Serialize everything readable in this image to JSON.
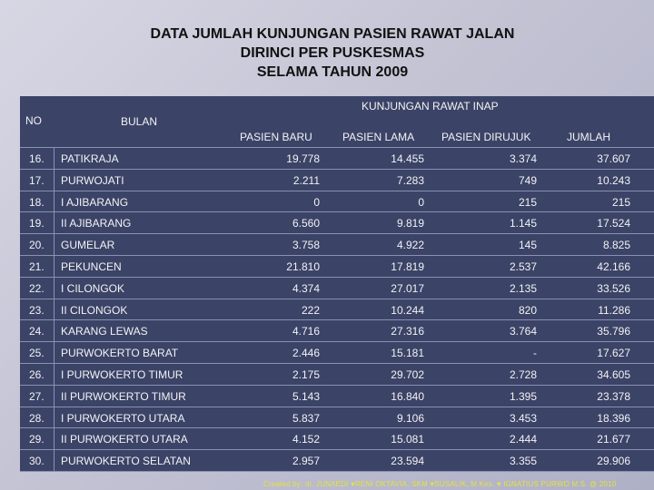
{
  "title": {
    "line1": "DATA JUMLAH KUNJUNGAN PASIEN RAWAT JALAN",
    "line2": "DIRINCI PER PUSKESMAS",
    "line3": "SELAMA TAHUN 2009"
  },
  "table": {
    "header_no": "NO",
    "header_bulan": "BULAN",
    "header_group": "KUNJUNGAN RAWAT INAP",
    "header_cols": [
      "PASIEN BARU",
      "PASIEN LAMA",
      "PASIEN DIRUJUK",
      "JUMLAH"
    ],
    "rows": [
      {
        "no": "16.",
        "name": "PATIKRAJA",
        "baru": "19.778",
        "lama": "14.455",
        "dirujuk": "3.374",
        "jumlah": "37.607"
      },
      {
        "no": "17.",
        "name": "PURWOJATI",
        "baru": "2.211",
        "lama": "7.283",
        "dirujuk": "749",
        "jumlah": "10.243"
      },
      {
        "no": "18.",
        "name": "I AJIBARANG",
        "baru": "0",
        "lama": "0",
        "dirujuk": "215",
        "jumlah": "215"
      },
      {
        "no": "19.",
        "name": "II AJIBARANG",
        "baru": "6.560",
        "lama": "9.819",
        "dirujuk": "1.145",
        "jumlah": "17.524"
      },
      {
        "no": "20.",
        "name": "GUMELAR",
        "baru": "3.758",
        "lama": "4.922",
        "dirujuk": "145",
        "jumlah": "8.825"
      },
      {
        "no": "21.",
        "name": "PEKUNCEN",
        "baru": "21.810",
        "lama": "17.819",
        "dirujuk": "2.537",
        "jumlah": "42.166"
      },
      {
        "no": "22.",
        "name": "I CILONGOK",
        "baru": "4.374",
        "lama": "27.017",
        "dirujuk": "2.135",
        "jumlah": "33.526"
      },
      {
        "no": "23.",
        "name": "II CILONGOK",
        "baru": "222",
        "lama": "10.244",
        "dirujuk": "820",
        "jumlah": "11.286"
      },
      {
        "no": "24.",
        "name": "KARANG LEWAS",
        "baru": "4.716",
        "lama": "27.316",
        "dirujuk": "3.764",
        "jumlah": "35.796"
      },
      {
        "no": "25.",
        "name": "PURWOKERTO BARAT",
        "baru": "2.446",
        "lama": "15.181",
        "dirujuk": "-",
        "jumlah": "17.627"
      },
      {
        "no": "26.",
        "name": "I PURWOKERTO TIMUR",
        "baru": "2.175",
        "lama": "29.702",
        "dirujuk": "2.728",
        "jumlah": "34.605"
      },
      {
        "no": "27.",
        "name": "II PURWOKERTO TIMUR",
        "baru": "5.143",
        "lama": "16.840",
        "dirujuk": "1.395",
        "jumlah": "23.378"
      },
      {
        "no": "28.",
        "name": "I PURWOKERTO UTARA",
        "baru": "5.837",
        "lama": "9.106",
        "dirujuk": "3.453",
        "jumlah": "18.396"
      },
      {
        "no": "29.",
        "name": "II PURWOKERTO UTARA",
        "baru": "4.152",
        "lama": "15.081",
        "dirujuk": "2.444",
        "jumlah": "21.677"
      },
      {
        "no": "30.",
        "name": "PURWOKERTO SELATAN",
        "baru": "2.957",
        "lama": "23.594",
        "dirujuk": "3.355",
        "jumlah": "29.906"
      }
    ]
  },
  "footer": "Created by: dr. JUNAEDI ♥RENI OKTAVIA, SKM ♥SUSALIK, M.Kes. ♥ IGNATIUS PURWO M.S. @ 2010",
  "colors": {
    "table_bg": "#3b4367",
    "footer_text": "#e8e040"
  }
}
